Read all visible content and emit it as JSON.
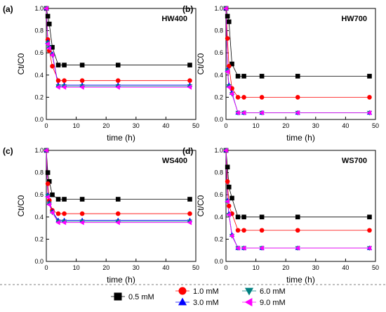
{
  "legend": [
    {
      "label": "0.5 mM",
      "color": "#000000",
      "marker": "square"
    },
    {
      "label": "1.0 mM",
      "color": "#ff0000",
      "marker": "circle"
    },
    {
      "label": "3.0 mM",
      "color": "#0000ff",
      "marker": "triangle-up"
    },
    {
      "label": "6.0 mM",
      "color": "#008080",
      "marker": "triangle-down"
    },
    {
      "label": "9.0 mM",
      "color": "#ff00ff",
      "marker": "triangle-left"
    }
  ],
  "chart_data": [
    {
      "type": "line",
      "panel": "(a)",
      "title": "HW400",
      "xlabel": "time (h)",
      "ylabel": "Ct/C0",
      "xlim": [
        0,
        50
      ],
      "ylim": [
        0,
        1.0
      ],
      "xticks": [
        0,
        10,
        20,
        30,
        40,
        50
      ],
      "yticks": [
        0.0,
        0.2,
        0.4,
        0.6,
        0.8,
        1.0
      ],
      "x": [
        0,
        0.5,
        1,
        2,
        4,
        6,
        12,
        24,
        48
      ],
      "series": [
        {
          "name": "0.5 mM",
          "values": [
            1.0,
            0.93,
            0.86,
            0.65,
            0.49,
            0.49,
            0.49,
            0.49,
            0.49
          ]
        },
        {
          "name": "1.0 mM",
          "values": [
            1.0,
            0.72,
            0.62,
            0.48,
            0.35,
            0.35,
            0.35,
            0.35,
            0.35
          ]
        },
        {
          "name": "3.0 mM",
          "values": [
            1.0,
            0.7,
            0.66,
            0.59,
            0.31,
            0.31,
            0.31,
            0.31,
            0.31
          ]
        },
        {
          "name": "6.0 mM",
          "values": [
            1.0,
            0.69,
            0.65,
            0.58,
            0.3,
            0.3,
            0.3,
            0.3,
            0.3
          ]
        },
        {
          "name": "9.0 mM",
          "values": [
            1.0,
            0.68,
            0.64,
            0.58,
            0.29,
            0.29,
            0.29,
            0.29,
            0.29
          ]
        }
      ]
    },
    {
      "type": "line",
      "panel": "(b)",
      "title": "HW700",
      "xlabel": "time (h)",
      "ylabel": "Ct/C0",
      "xlim": [
        0,
        50
      ],
      "ylim": [
        0,
        1.0
      ],
      "xticks": [
        0,
        10,
        20,
        30,
        40,
        50
      ],
      "yticks": [
        0.0,
        0.2,
        0.4,
        0.6,
        0.8,
        1.0
      ],
      "x": [
        0,
        0.5,
        1,
        2,
        4,
        6,
        12,
        24,
        48
      ],
      "series": [
        {
          "name": "0.5 mM",
          "values": [
            1.0,
            0.93,
            0.88,
            0.5,
            0.39,
            0.39,
            0.39,
            0.39,
            0.39
          ]
        },
        {
          "name": "1.0 mM",
          "values": [
            1.0,
            0.73,
            0.48,
            0.28,
            0.2,
            0.2,
            0.2,
            0.2,
            0.2
          ]
        },
        {
          "name": "3.0 mM",
          "values": [
            1.0,
            0.45,
            0.31,
            0.24,
            0.06,
            0.06,
            0.06,
            0.06,
            0.06
          ]
        },
        {
          "name": "6.0 mM",
          "values": [
            1.0,
            0.44,
            0.3,
            0.23,
            0.06,
            0.06,
            0.06,
            0.06,
            0.06
          ]
        },
        {
          "name": "9.0 mM",
          "values": [
            1.0,
            0.43,
            0.29,
            0.23,
            0.06,
            0.06,
            0.06,
            0.06,
            0.06
          ]
        }
      ]
    },
    {
      "type": "line",
      "panel": "(c)",
      "title": "WS400",
      "xlabel": "time (h)",
      "ylabel": "Ct/C0",
      "xlim": [
        0,
        50
      ],
      "ylim": [
        0,
        1.0
      ],
      "xticks": [
        0,
        10,
        20,
        30,
        40,
        50
      ],
      "yticks": [
        0.0,
        0.2,
        0.4,
        0.6,
        0.8,
        1.0
      ],
      "x": [
        0,
        0.5,
        1,
        2,
        4,
        6,
        12,
        24,
        48
      ],
      "series": [
        {
          "name": "0.5 mM",
          "values": [
            1.0,
            0.8,
            0.72,
            0.6,
            0.56,
            0.56,
            0.56,
            0.56,
            0.56
          ]
        },
        {
          "name": "1.0 mM",
          "values": [
            1.0,
            0.7,
            0.55,
            0.46,
            0.43,
            0.43,
            0.43,
            0.43,
            0.43
          ]
        },
        {
          "name": "3.0 mM",
          "values": [
            1.0,
            0.6,
            0.53,
            0.45,
            0.37,
            0.37,
            0.37,
            0.37,
            0.37
          ]
        },
        {
          "name": "6.0 mM",
          "values": [
            1.0,
            0.59,
            0.52,
            0.44,
            0.36,
            0.36,
            0.36,
            0.36,
            0.36
          ]
        },
        {
          "name": "9.0 mM",
          "values": [
            1.0,
            0.58,
            0.51,
            0.44,
            0.35,
            0.35,
            0.35,
            0.35,
            0.35
          ]
        }
      ]
    },
    {
      "type": "line",
      "panel": "(d)",
      "title": "WS700",
      "xlabel": "time (h)",
      "ylabel": "Ct/C0",
      "xlim": [
        0,
        50
      ],
      "ylim": [
        0,
        1.0
      ],
      "xticks": [
        0,
        10,
        20,
        30,
        40,
        50
      ],
      "yticks": [
        0.0,
        0.2,
        0.4,
        0.6,
        0.8,
        1.0
      ],
      "x": [
        0,
        0.5,
        1,
        2,
        4,
        6,
        12,
        24,
        48
      ],
      "series": [
        {
          "name": "0.5 mM",
          "values": [
            1.0,
            0.85,
            0.67,
            0.57,
            0.4,
            0.4,
            0.4,
            0.4,
            0.4
          ]
        },
        {
          "name": "1.0 mM",
          "values": [
            1.0,
            0.72,
            0.5,
            0.43,
            0.28,
            0.28,
            0.28,
            0.28,
            0.28
          ]
        },
        {
          "name": "3.0 mM",
          "values": [
            1.0,
            0.55,
            0.43,
            0.24,
            0.12,
            0.12,
            0.12,
            0.12,
            0.12
          ]
        },
        {
          "name": "6.0 mM",
          "values": [
            1.0,
            0.54,
            0.42,
            0.23,
            0.12,
            0.12,
            0.12,
            0.12,
            0.12
          ]
        },
        {
          "name": "9.0 mM",
          "values": [
            1.0,
            0.54,
            0.42,
            0.23,
            0.12,
            0.12,
            0.12,
            0.12,
            0.12
          ]
        }
      ]
    }
  ]
}
